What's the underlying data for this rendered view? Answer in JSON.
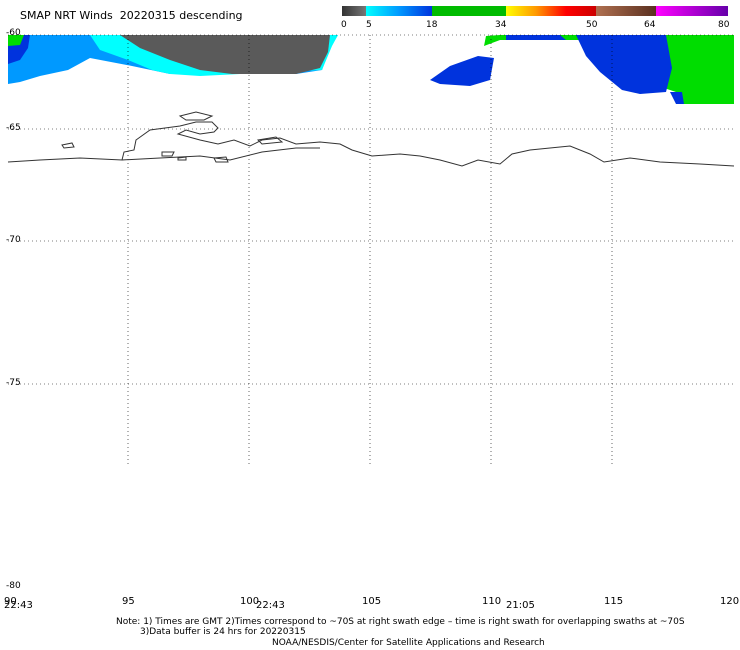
{
  "title": "SMAP NRT Winds  20220315 descending",
  "colorbar": {
    "ticks": [
      "0",
      "5",
      "18",
      "34",
      "50",
      "64",
      "80"
    ],
    "segments": [
      {
        "from": 0,
        "to": 5,
        "color": "#555555"
      },
      {
        "from": 5,
        "to": 18,
        "color": "#00aaff"
      },
      {
        "from": 18,
        "to": 34,
        "color": "#00bb00"
      },
      {
        "from": 34,
        "to": 50,
        "color": "#ff5500"
      },
      {
        "from": 50,
        "to": 64,
        "color": "#8b4a2b"
      },
      {
        "from": 64,
        "to": 80,
        "color": "#9a00cc"
      }
    ]
  },
  "axes": {
    "lat_labels": [
      "-60",
      "-65",
      "-70",
      "-75",
      "-80"
    ],
    "lon_labels": [
      "90",
      "95",
      "100",
      "105",
      "110",
      "115",
      "120"
    ],
    "lat_range": [
      -80,
      -60
    ],
    "lon_range": [
      90,
      120
    ]
  },
  "times": [
    "22:43",
    "22:43",
    "21:05"
  ],
  "notes": {
    "line1": "Note: 1) Times are GMT 2)Times correspond to ~70S at right swath edge – time is right swath for overlapping swaths at ~70S",
    "line2": "3)Data buffer is 24 hrs for 20220315",
    "line3": "NOAA/NESDIS/Center for Satellite Applications and Research"
  },
  "colors": {
    "grey": "#5a5a5a",
    "cyan": "#00ffff",
    "light_blue": "#0099ff",
    "blue": "#0033dd",
    "green": "#00dd00",
    "coast": "#333333"
  }
}
